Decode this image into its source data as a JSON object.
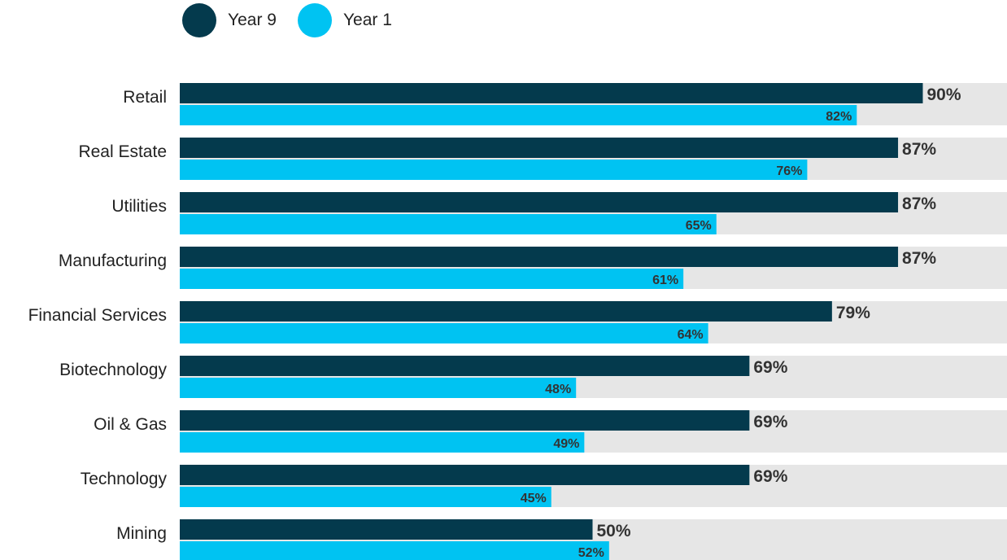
{
  "colors": {
    "series1": "#043a4d",
    "series2": "#00c3f2",
    "track": "#e6e6e6",
    "category_text": "#222222",
    "value_text": "#333333"
  },
  "chart_data": {
    "type": "bar",
    "orientation": "horizontal",
    "categories": [
      "Retail",
      "Real Estate",
      "Utilities",
      "Manufacturing",
      "Financial Services",
      "Biotechnology",
      "Oil & Gas",
      "Technology",
      "Mining"
    ],
    "series": [
      {
        "name": "Year 9",
        "values": [
          90,
          87,
          87,
          87,
          79,
          69,
          69,
          69,
          50
        ],
        "labels": [
          "90%",
          "87%",
          "87%",
          "87%",
          "79%",
          "69%",
          "69%",
          "69%",
          "50%"
        ]
      },
      {
        "name": "Year 1",
        "values": [
          82,
          76,
          65,
          61,
          64,
          48,
          49,
          45,
          52
        ],
        "labels": [
          "82%",
          "76%",
          "65%",
          "61%",
          "64%",
          "48%",
          "49%",
          "45%",
          "52%"
        ]
      }
    ],
    "xlim": [
      0,
      100
    ],
    "legend": "top-left",
    "grid": false,
    "title": "",
    "xlabel": "",
    "ylabel": ""
  }
}
